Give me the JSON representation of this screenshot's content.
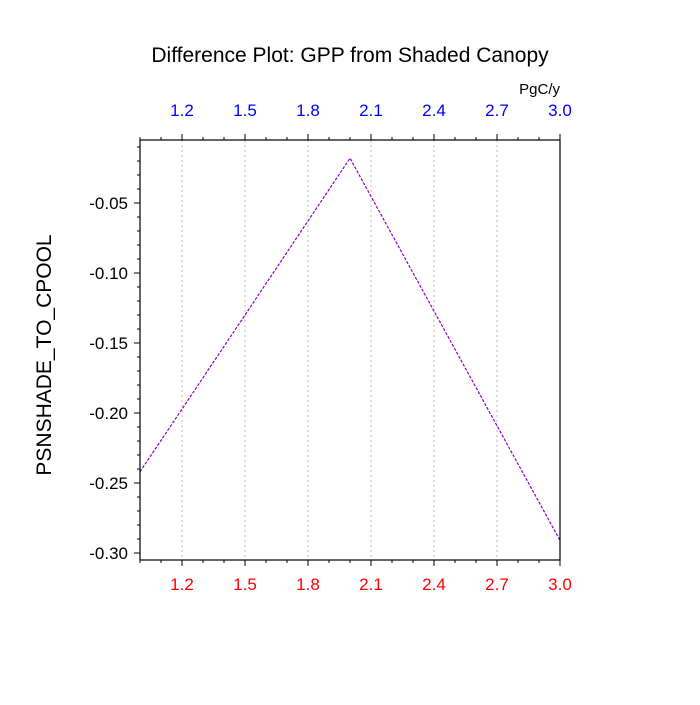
{
  "chart_data": {
    "type": "line",
    "title": "Difference Plot: GPP from Shaded Canopy",
    "ylabel": "PSNSHADE_TO_CPOOL",
    "top_axis_unit": "PgC/y",
    "xlim": [
      1.0,
      3.0
    ],
    "ylim": [
      -0.305,
      -0.005
    ],
    "x_ticks": [
      1.2,
      1.5,
      1.8,
      2.1,
      2.4,
      2.7,
      3.0
    ],
    "x_tick_labels": [
      "1.2",
      "1.5",
      "1.8",
      "2.1",
      "2.4",
      "2.7",
      "3.0"
    ],
    "y_ticks": [
      -0.05,
      -0.1,
      -0.15,
      -0.2,
      -0.25,
      -0.3
    ],
    "y_tick_labels": [
      "-0.05",
      "-0.10",
      "-0.15",
      "-0.20",
      "-0.25",
      "-0.30"
    ],
    "grid": "vertical-dotted",
    "colors": {
      "line": "#8b00c9",
      "bottom_tick_labels": "#ff0000",
      "top_tick_labels": "#0000ff",
      "grid": "#bbbbbb",
      "axes": "#000000"
    },
    "series": [
      {
        "x": [
          1.0,
          2.0,
          3.0
        ],
        "y": [
          -0.242,
          -0.018,
          -0.291
        ]
      }
    ]
  }
}
